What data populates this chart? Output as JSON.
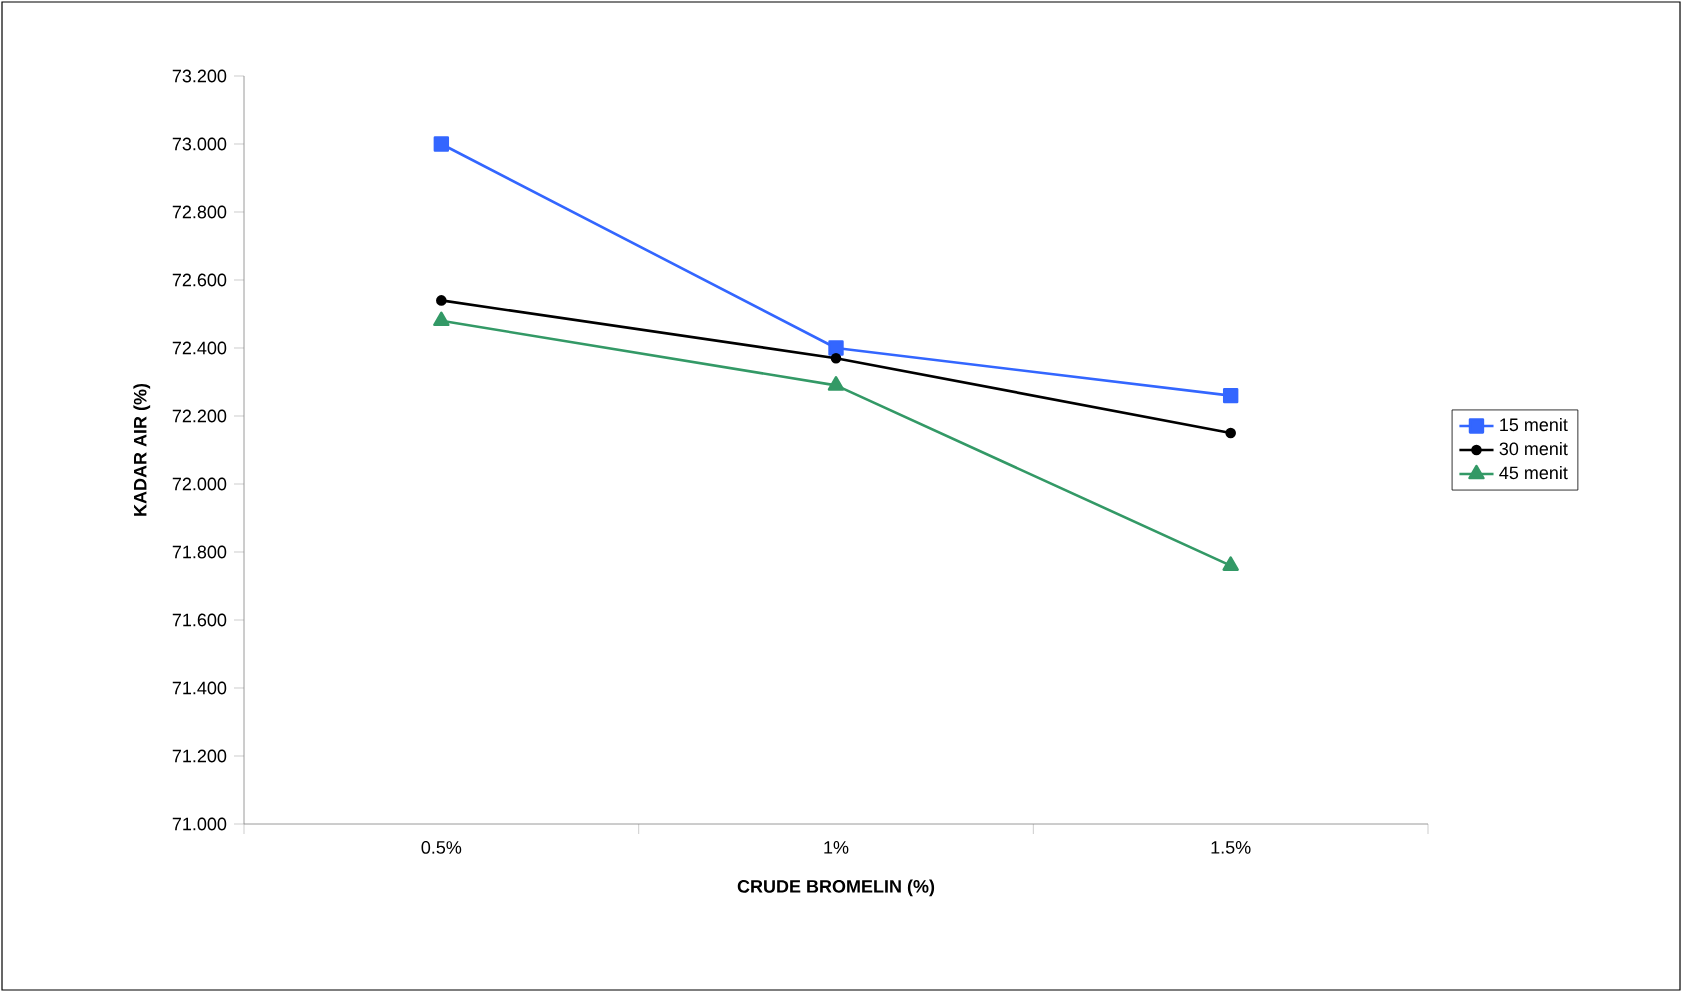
{
  "chart_data": {
    "type": "line",
    "xlabel": "CRUDE BROMELIN (%)",
    "ylabel": "KADAR AIR (%)",
    "categories": [
      "0.5%",
      "1%",
      "1.5%"
    ],
    "series": [
      {
        "name": "15 menit",
        "color": "#3366ff",
        "marker": "square",
        "values": [
          73.0,
          72.4,
          72.26
        ]
      },
      {
        "name": "30 menit",
        "color": "#000000",
        "marker": "circle",
        "values": [
          72.54,
          72.37,
          72.15
        ]
      },
      {
        "name": "45 menit",
        "color": "#339966",
        "marker": "triangle",
        "values": [
          72.48,
          72.29,
          71.76
        ]
      }
    ],
    "ylim": [
      71.0,
      73.2
    ],
    "yticks": [
      {
        "value": 71.0,
        "label": "71.000"
      },
      {
        "value": 71.2,
        "label": "71.200"
      },
      {
        "value": 71.4,
        "label": "71.400"
      },
      {
        "value": 71.6,
        "label": "71.600"
      },
      {
        "value": 71.8,
        "label": "71.800"
      },
      {
        "value": 72.0,
        "label": "72.000"
      },
      {
        "value": 72.2,
        "label": "72.200"
      },
      {
        "value": 72.4,
        "label": "72.400"
      },
      {
        "value": 72.6,
        "label": "72.600"
      },
      {
        "value": 72.8,
        "label": "72.800"
      },
      {
        "value": 73.0,
        "label": "73.000"
      },
      {
        "value": 73.2,
        "label": "73.200"
      }
    ],
    "grid": false,
    "legend": "right"
  }
}
